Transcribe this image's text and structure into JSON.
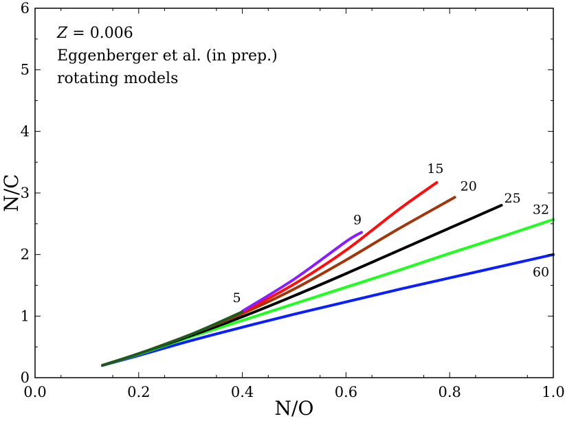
{
  "chart_data": {
    "type": "line",
    "xlabel": "N/O",
    "ylabel": "N/C",
    "xlim": [
      0.0,
      1.0
    ],
    "ylim": [
      0,
      6
    ],
    "xticks": [
      "0.0",
      "0.2",
      "0.4",
      "0.6",
      "0.8",
      "1.0"
    ],
    "yticks": [
      "0",
      "1",
      "2",
      "3",
      "4",
      "5",
      "6"
    ],
    "grid": false,
    "annotations": {
      "z_symbol": "Z",
      "z_value": " = 0.006",
      "line2": "Eggenberger et al. (in prep.)",
      "line3": "rotating models"
    },
    "series": [
      {
        "name": "60",
        "color": "#0a1fff",
        "x": [
          0.13,
          0.2,
          0.3,
          0.4,
          0.5,
          0.6,
          0.7,
          0.8,
          0.9,
          1.0
        ],
        "y": [
          0.2,
          0.36,
          0.6,
          0.82,
          1.03,
          1.23,
          1.43,
          1.62,
          1.81,
          2.0
        ]
      },
      {
        "name": "32",
        "color": "#1dff1d",
        "x": [
          0.13,
          0.2,
          0.3,
          0.4,
          0.5,
          0.6,
          0.7,
          0.8,
          0.9,
          1.0
        ],
        "y": [
          0.2,
          0.38,
          0.66,
          0.93,
          1.2,
          1.47,
          1.74,
          2.02,
          2.29,
          2.57
        ]
      },
      {
        "name": "25",
        "color": "#000000",
        "x": [
          0.13,
          0.2,
          0.3,
          0.4,
          0.5,
          0.6,
          0.7,
          0.8,
          0.9
        ],
        "y": [
          0.2,
          0.39,
          0.68,
          0.99,
          1.33,
          1.69,
          2.06,
          2.43,
          2.8
        ]
      },
      {
        "name": "20",
        "color": "#a0360a",
        "x": [
          0.13,
          0.2,
          0.3,
          0.4,
          0.5,
          0.6,
          0.7,
          0.81
        ],
        "y": [
          0.2,
          0.39,
          0.7,
          1.04,
          1.44,
          1.91,
          2.41,
          2.93
        ]
      },
      {
        "name": "15",
        "color": "#ff0d0d",
        "x": [
          0.4,
          0.5,
          0.6,
          0.7,
          0.775
        ],
        "y": [
          1.06,
          1.52,
          2.07,
          2.72,
          3.17
        ]
      },
      {
        "name": "9",
        "color": "#8a1dff",
        "x": [
          0.4,
          0.5,
          0.6,
          0.63
        ],
        "y": [
          1.08,
          1.6,
          2.21,
          2.36
        ]
      },
      {
        "name": "5",
        "color": "#1c5a22",
        "x": [
          0.13,
          0.2,
          0.3,
          0.4
        ],
        "y": [
          0.2,
          0.39,
          0.7,
          1.07
        ]
      }
    ]
  }
}
